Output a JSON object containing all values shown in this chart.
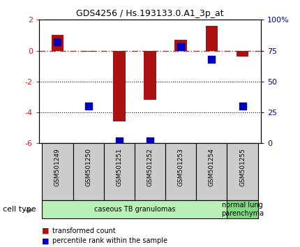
{
  "title": "GDS4256 / Hs.193133.0.A1_3p_at",
  "samples": [
    "GSM501249",
    "GSM501250",
    "GSM501251",
    "GSM501252",
    "GSM501253",
    "GSM501254",
    "GSM501255"
  ],
  "transformed_count": [
    1.0,
    -0.05,
    -4.6,
    -3.2,
    0.7,
    1.6,
    -0.4
  ],
  "percentile_rank": [
    82,
    30,
    2,
    2,
    78,
    68,
    30
  ],
  "ylim_left": [
    -6,
    2
  ],
  "ylim_right": [
    0,
    100
  ],
  "bar_color": "#aa1111",
  "pct_color": "#0000bb",
  "ref_line_color": "#cc2222",
  "dotted_lines": [
    -2,
    -4
  ],
  "right_ticks": [
    0,
    25,
    50,
    75,
    100
  ],
  "right_tick_labels": [
    "0",
    "25",
    "50",
    "75",
    "100%"
  ],
  "left_ticks": [
    -6,
    -4,
    -2,
    0,
    2
  ],
  "groups": [
    {
      "label": "caseous TB granulomas",
      "samples": [
        0,
        1,
        2,
        3,
        4,
        5
      ],
      "color": "#b8f0b8"
    },
    {
      "label": "normal lung\nparenchyma",
      "samples": [
        6
      ],
      "color": "#80d880"
    }
  ],
  "legend_bar_label": "transformed count",
  "legend_pct_label": "percentile rank within the sample",
  "cell_type_label": "cell type",
  "sample_box_color": "#cccccc",
  "background_color": "#ffffff",
  "bar_width": 0.4
}
